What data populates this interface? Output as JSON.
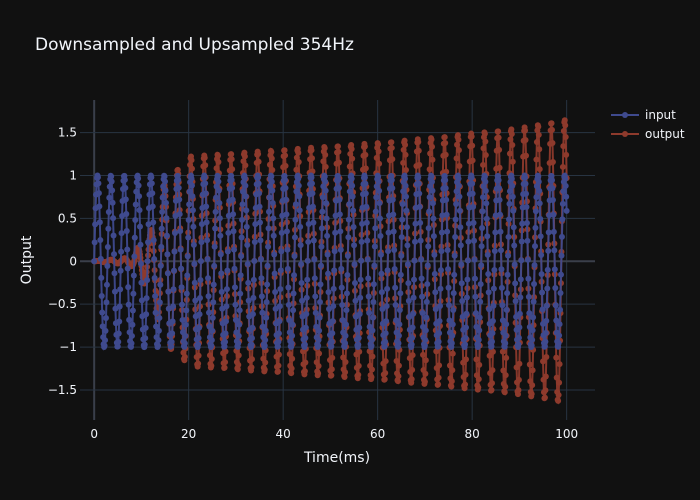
{
  "chart_data": {
    "type": "line",
    "title": "Downsampled and Upsampled 354Hz",
    "xlabel": "Time(ms)",
    "ylabel": "Output",
    "xlim": [
      -3,
      106
    ],
    "ylim": [
      -1.85,
      1.88
    ],
    "x_ticks": [
      0,
      20,
      40,
      60,
      80,
      100
    ],
    "x_tick_labels": [
      "0",
      "20",
      "40",
      "60",
      "80",
      "100"
    ],
    "y_ticks": [
      -1.5,
      -1,
      -0.5,
      0,
      0.5,
      1,
      1.5
    ],
    "y_tick_labels": [
      "−1.5",
      "−1",
      "−0.5",
      "0",
      "0.5",
      "1",
      "1.5"
    ],
    "grid": true,
    "legend_position": "top-right",
    "mode": "lines+markers",
    "series": [
      {
        "name": "input",
        "color": "#3f4a8e",
        "frequency_hz": 354,
        "amplitude": 1.0,
        "x_start": 0,
        "x_end": 100,
        "x_step": 0.1
      },
      {
        "name": "output",
        "color": "#8e3a2c",
        "frequency_hz": 354,
        "envelope": {
          "x": [
            0,
            6,
            8,
            10,
            12,
            14,
            16,
            18,
            20,
            30,
            40,
            50,
            60,
            70,
            80,
            90,
            100
          ],
          "y": [
            0,
            0.03,
            0.06,
            0.22,
            0.35,
            0.8,
            1.02,
            1.08,
            1.22,
            1.26,
            1.3,
            1.34,
            1.38,
            1.43,
            1.49,
            1.55,
            1.65
          ]
        },
        "x_start": 0,
        "x_end": 100,
        "x_step": 0.1
      }
    ]
  }
}
